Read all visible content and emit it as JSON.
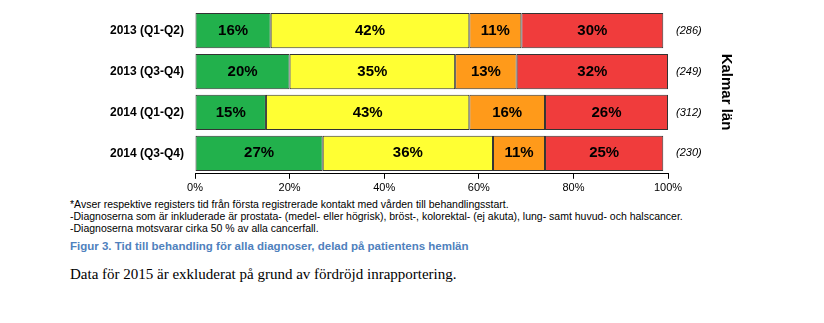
{
  "chart_data": {
    "type": "bar",
    "orientation": "horizontal",
    "stacked": true,
    "data_labels": true,
    "grid": false,
    "categories": [
      "2013 (Q1-Q2)",
      "2013 (Q3-Q4)",
      "2014 (Q1-Q2)",
      "2014 (Q3-Q4)"
    ],
    "series": [
      {
        "color": "#22b14c",
        "values": [
          16,
          20,
          15,
          27
        ],
        "value_labels": [
          "16%",
          "20%",
          "15%",
          "27%"
        ]
      },
      {
        "color": "#ffff33",
        "values": [
          42,
          35,
          43,
          36
        ],
        "value_labels": [
          "42%",
          "35%",
          "43%",
          "36%"
        ]
      },
      {
        "color": "#ff9a1a",
        "values": [
          11,
          13,
          16,
          11
        ],
        "value_labels": [
          "11%",
          "13%",
          "16%",
          "11%"
        ]
      },
      {
        "color": "#f03c3c",
        "values": [
          30,
          32,
          26,
          25
        ],
        "value_labels": [
          "30%",
          "32%",
          "26%",
          "25%"
        ]
      }
    ],
    "xlim": [
      0,
      100
    ],
    "xticks": [
      {
        "value": 0,
        "label": "0%"
      },
      {
        "value": 20,
        "label": "20%"
      },
      {
        "value": 40,
        "label": "40%"
      },
      {
        "value": 60,
        "label": "60%"
      },
      {
        "value": 80,
        "label": "80%"
      },
      {
        "value": 100,
        "label": "100%"
      }
    ],
    "count_labels": [
      "(286)",
      "(249)",
      "(312)",
      "(230)"
    ],
    "side_label": "Kalmar län",
    "notes": [
      "*Avser respektive registers tid från första registrerade kontakt med vården till behandlingsstart.",
      "-Diagnoserna som är inkluderade är prostata- (medel- eller högrisk), bröst-, kolorektal- (ej akuta), lung- samt huvud- och halscancer.",
      "-Diagnoserna motsvarar cirka 50 % av alla cancerfall."
    ],
    "caption": "Figur 3. Tid till behandling för alla diagnoser, delad på patientens hemlän",
    "text": "Data för 2015 är exkluderat på grund av fördröjd inrapportering."
  }
}
